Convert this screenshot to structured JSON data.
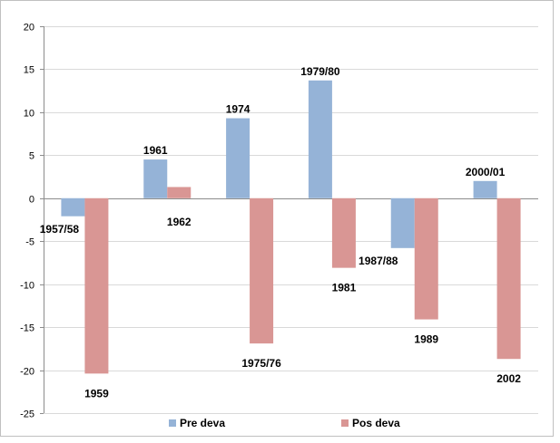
{
  "chart_data": {
    "type": "bar",
    "title": "",
    "xlabel": "",
    "ylabel": "",
    "ylim": [
      -25,
      20
    ],
    "yticks": [
      20,
      15,
      10,
      5,
      0,
      -5,
      -10,
      -15,
      -20,
      -25
    ],
    "grid": true,
    "legend_position": "bottom",
    "groups": [
      {
        "pre": {
          "value": -2.1,
          "label": "1957/58"
        },
        "pos": {
          "value": -20.4,
          "label": "1959"
        }
      },
      {
        "pre": {
          "value": 4.5,
          "label": "1961"
        },
        "pos": {
          "value": 1.3,
          "label": "1962"
        }
      },
      {
        "pre": {
          "value": 9.3,
          "label": "1974"
        },
        "pos": {
          "value": -16.9,
          "label": "1975/76"
        }
      },
      {
        "pre": {
          "value": 13.7,
          "label": "1979/80"
        },
        "pos": {
          "value": -8.1,
          "label": "1981"
        }
      },
      {
        "pre": {
          "value": -5.8,
          "label": "1987/88"
        },
        "pos": {
          "value": -14.1,
          "label": "1989"
        }
      },
      {
        "pre": {
          "value": 2.0,
          "label": "2000/01"
        },
        "pos": {
          "value": -18.7,
          "label": "2002"
        }
      }
    ],
    "series": [
      {
        "key": "pre",
        "name": "Pre deva",
        "color": "#95B3D7"
      },
      {
        "key": "pos",
        "name": "Pos deva",
        "color": "#D99694"
      }
    ]
  }
}
